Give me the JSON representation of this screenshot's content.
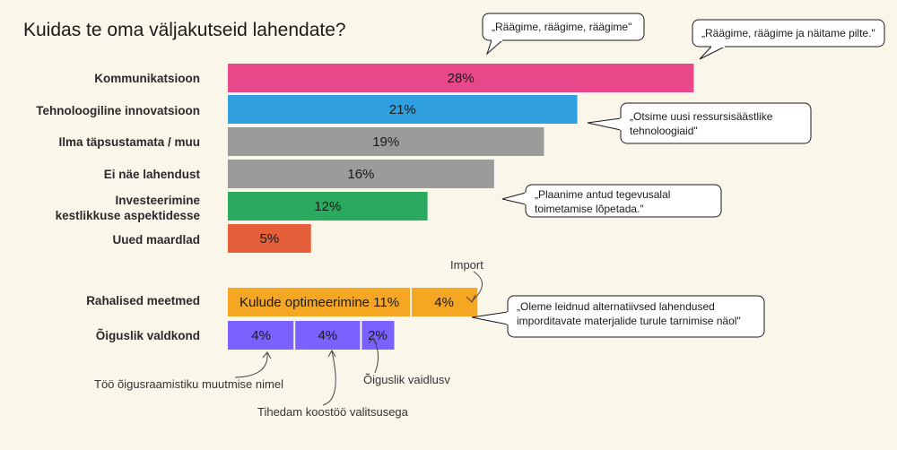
{
  "chart_data": {
    "type": "bar",
    "title": "Kuidas te oma väljakutseid lahendate?",
    "unit": "%",
    "categories": [
      {
        "label": "Kommunikatsioon",
        "value": 28,
        "display": "28%",
        "color": "#e8488a"
      },
      {
        "label": "Tehnoloogiline innovatsioon",
        "value": 21,
        "display": "21%",
        "color": "#2f9fe0"
      },
      {
        "label": "Ilma täpsustamata / muu",
        "value": 19,
        "display": "19%",
        "color": "#9b9b9b"
      },
      {
        "label": "Ei näe lahendust",
        "value": 16,
        "display": "16%",
        "color": "#9b9b9b"
      },
      {
        "label": "Investeerimine kestlikkuse aspektidesse",
        "label_lines": [
          "Investeerimine",
          "kestlikkuse aspektidesse"
        ],
        "value": 12,
        "display": "12%",
        "color": "#2aaa5e"
      },
      {
        "label": "Uued maardlad",
        "value": 5,
        "display": "5%",
        "color": "#e5603a"
      }
    ],
    "stacked": [
      {
        "label": "Rahalised meetmed",
        "color": "#f5a623",
        "segments": [
          {
            "name": "Kulude optimeerimine",
            "value": 11,
            "display": "Kulude optimeerimine 11%"
          },
          {
            "name": "Import",
            "value": 4,
            "display": "4%"
          }
        ]
      },
      {
        "label": "Õiguslik valdkond",
        "color": "#7b61ff",
        "segments": [
          {
            "name": "Töö õigusraamistiku muutmise nimel",
            "value": 4,
            "display": "4%"
          },
          {
            "name": "Tihedam koostöö valitsusega",
            "value": 4,
            "display": "4%"
          },
          {
            "name": "Õiguslik vaidlusv",
            "value": 2,
            "display": "2%"
          }
        ]
      }
    ],
    "segment_notes": [
      "Import",
      "Töö õigusraamistiku muutmise nimel",
      "Tihedam koostöö valitsusega",
      "Õiguslik vaidlusv"
    ],
    "callouts": [
      "„Räägime, räägime, räägime\"",
      "„Räägime, räägime ja näitame pilte.\"",
      "„Otsime uusi ressursisäästlike tehnoloogiaid\"",
      "„Plaanime antud tegevusalal toimetamise lõpetada.\"",
      "„Oleme leidnud alternatiivsed lahendused imporditavate materjalide turule tarnimise näol\""
    ]
  }
}
